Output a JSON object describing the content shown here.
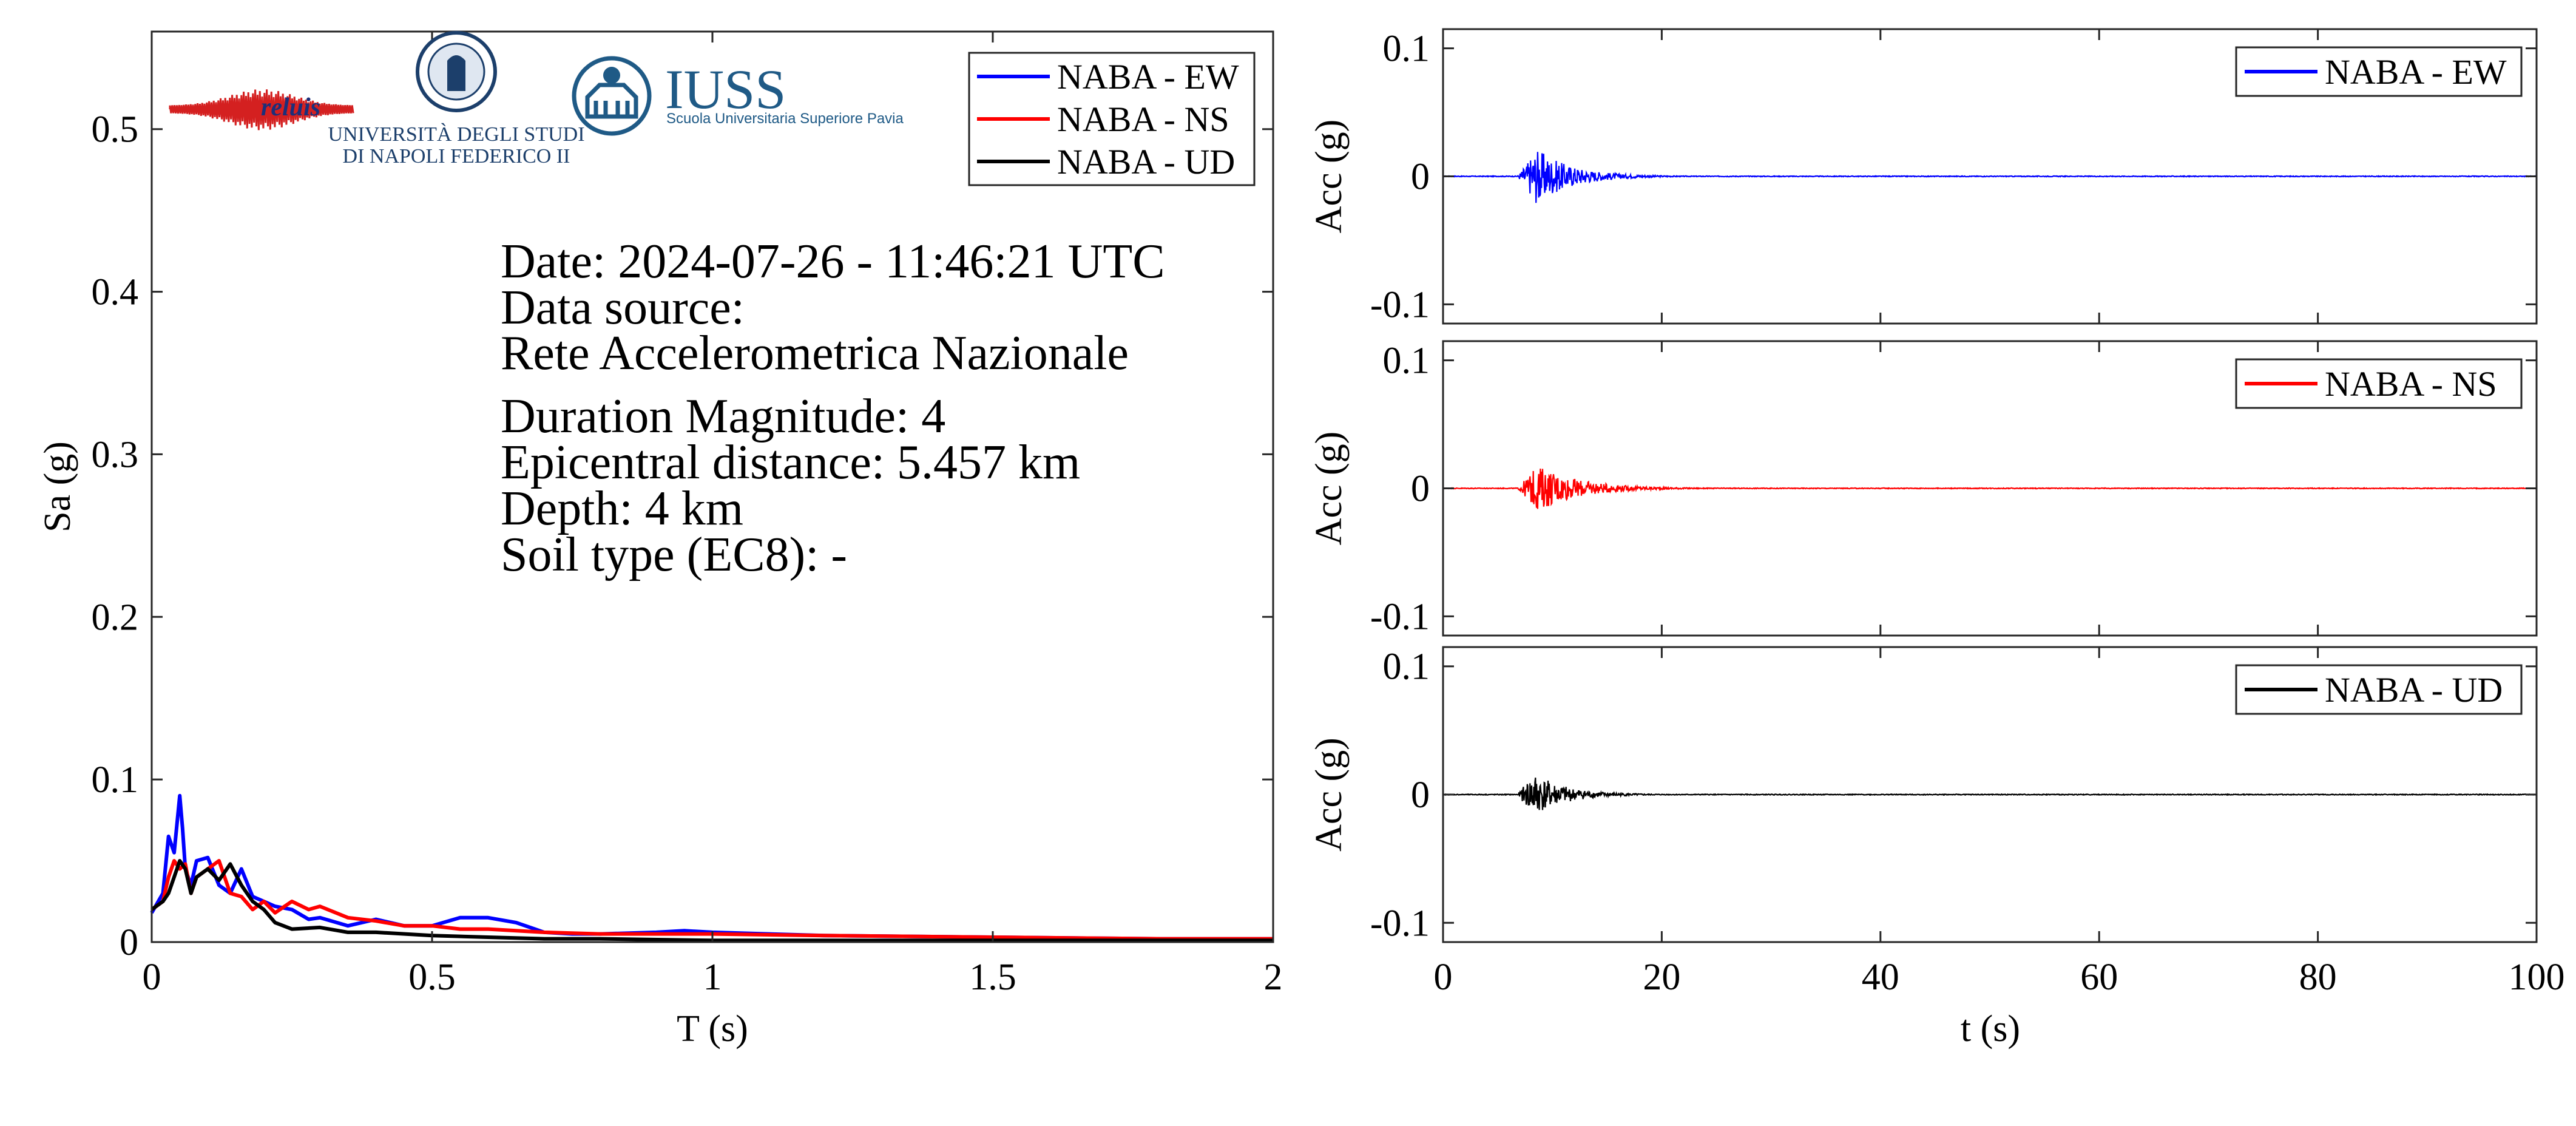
{
  "logos": {
    "reluis": "reluis",
    "unina_line1": "UNIVERSITÀ DEGLI STUDI",
    "unina_line2": "DI NAPOLI FEDERICO II",
    "iuss_name": "IUSS",
    "iuss_sub": "Scuola Universitaria Superiore Pavia"
  },
  "info": {
    "lines": [
      "Date: 2024-07-26 - 11:46:21 UTC",
      "Data source:",
      "Rete Accelerometrica Nazionale",
      "Duration Magnitude: 4",
      "Epicentral distance: 5.457 km",
      "Depth: 4 km",
      "Soil type (EC8): -"
    ]
  },
  "chart_data": [
    {
      "type": "line",
      "title": "",
      "xlabel": "T (s)",
      "ylabel": "Sa (g)",
      "xlim": [
        0,
        2
      ],
      "ylim": [
        0,
        0.56
      ],
      "xticks": [
        0,
        0.5,
        1,
        1.5,
        2
      ],
      "xtick_labels": [
        "0",
        "0.5",
        "1",
        "1.5",
        "2"
      ],
      "yticks": [
        0,
        0.1,
        0.2,
        0.3,
        0.4,
        0.5
      ],
      "ytick_labels": [
        "0",
        "0.1",
        "0.2",
        "0.3",
        "0.4",
        "0.5"
      ],
      "grid": false,
      "legend_position": "top-right",
      "series": [
        {
          "name": "NABA - EW",
          "color": "#0000ff",
          "x": [
            0,
            0.02,
            0.03,
            0.04,
            0.05,
            0.055,
            0.06,
            0.07,
            0.08,
            0.1,
            0.12,
            0.14,
            0.16,
            0.18,
            0.2,
            0.22,
            0.25,
            0.28,
            0.3,
            0.35,
            0.4,
            0.45,
            0.5,
            0.55,
            0.6,
            0.65,
            0.7,
            0.75,
            0.8,
            0.9,
            0.95,
            1.0,
            1.2,
            1.5,
            1.8,
            2.0
          ],
          "y": [
            0.018,
            0.03,
            0.065,
            0.055,
            0.09,
            0.07,
            0.045,
            0.035,
            0.05,
            0.052,
            0.035,
            0.03,
            0.045,
            0.028,
            0.025,
            0.022,
            0.02,
            0.014,
            0.015,
            0.01,
            0.014,
            0.01,
            0.01,
            0.015,
            0.015,
            0.012,
            0.006,
            0.005,
            0.005,
            0.006,
            0.007,
            0.006,
            0.004,
            0.003,
            0.002,
            0.002
          ]
        },
        {
          "name": "NABA - NS",
          "color": "#ff0000",
          "x": [
            0,
            0.02,
            0.03,
            0.04,
            0.05,
            0.06,
            0.07,
            0.08,
            0.1,
            0.12,
            0.14,
            0.16,
            0.18,
            0.2,
            0.22,
            0.25,
            0.28,
            0.3,
            0.35,
            0.4,
            0.45,
            0.5,
            0.55,
            0.6,
            0.7,
            0.8,
            0.9,
            1.0,
            1.2,
            1.5,
            1.8,
            2.0
          ],
          "y": [
            0.02,
            0.025,
            0.04,
            0.05,
            0.045,
            0.048,
            0.03,
            0.04,
            0.045,
            0.05,
            0.03,
            0.028,
            0.02,
            0.025,
            0.018,
            0.025,
            0.02,
            0.022,
            0.015,
            0.013,
            0.01,
            0.01,
            0.008,
            0.008,
            0.006,
            0.005,
            0.005,
            0.005,
            0.004,
            0.003,
            0.002,
            0.002
          ]
        },
        {
          "name": "NABA - UD",
          "color": "#000000",
          "x": [
            0,
            0.02,
            0.03,
            0.04,
            0.05,
            0.06,
            0.07,
            0.08,
            0.1,
            0.12,
            0.14,
            0.16,
            0.18,
            0.2,
            0.22,
            0.25,
            0.3,
            0.35,
            0.4,
            0.5,
            0.6,
            0.7,
            0.8,
            1.0,
            1.5,
            2.0
          ],
          "y": [
            0.02,
            0.025,
            0.03,
            0.04,
            0.05,
            0.045,
            0.03,
            0.04,
            0.045,
            0.038,
            0.048,
            0.035,
            0.025,
            0.02,
            0.012,
            0.008,
            0.009,
            0.006,
            0.006,
            0.004,
            0.003,
            0.002,
            0.002,
            0.001,
            0.001,
            0.001
          ]
        }
      ]
    },
    {
      "type": "line",
      "title": "",
      "xlabel": "",
      "ylabel": "Acc (g)",
      "xlim": [
        0,
        100
      ],
      "ylim": [
        -0.115,
        0.115
      ],
      "yticks": [
        -0.1,
        0,
        0.1
      ],
      "ytick_labels": [
        "-0.1",
        "0",
        "0.1"
      ],
      "grid": false,
      "legend_position": "top-right",
      "series": [
        {
          "name": "NABA - EW",
          "color": "#0000ff",
          "event_start": 6.8,
          "peak_time": 8.6,
          "peak_amplitude": 0.022,
          "decay_end": 18
        }
      ]
    },
    {
      "type": "line",
      "title": "",
      "xlabel": "",
      "ylabel": "Acc (g)",
      "xlim": [
        0,
        100
      ],
      "ylim": [
        -0.115,
        0.115
      ],
      "yticks": [
        -0.1,
        0,
        0.1
      ],
      "ytick_labels": [
        "-0.1",
        "0",
        "0.1"
      ],
      "grid": false,
      "legend_position": "top-right",
      "series": [
        {
          "name": "NABA - NS",
          "color": "#ff0000",
          "event_start": 6.8,
          "peak_time": 8.7,
          "peak_amplitude": 0.018,
          "decay_end": 20
        }
      ]
    },
    {
      "type": "line",
      "title": "",
      "xlabel": "t (s)",
      "ylabel": "Acc (g)",
      "xlim": [
        0,
        100
      ],
      "ylim": [
        -0.115,
        0.115
      ],
      "xticks": [
        0,
        20,
        40,
        60,
        80,
        100
      ],
      "xtick_labels": [
        "0",
        "20",
        "40",
        "60",
        "80",
        "100"
      ],
      "yticks": [
        -0.1,
        0,
        0.1
      ],
      "ytick_labels": [
        "-0.1",
        "0",
        "0.1"
      ],
      "grid": false,
      "legend_position": "top-right",
      "series": [
        {
          "name": "NABA - UD",
          "color": "#000000",
          "event_start": 6.8,
          "peak_time": 8.3,
          "peak_amplitude": 0.017,
          "decay_end": 17
        }
      ]
    }
  ]
}
